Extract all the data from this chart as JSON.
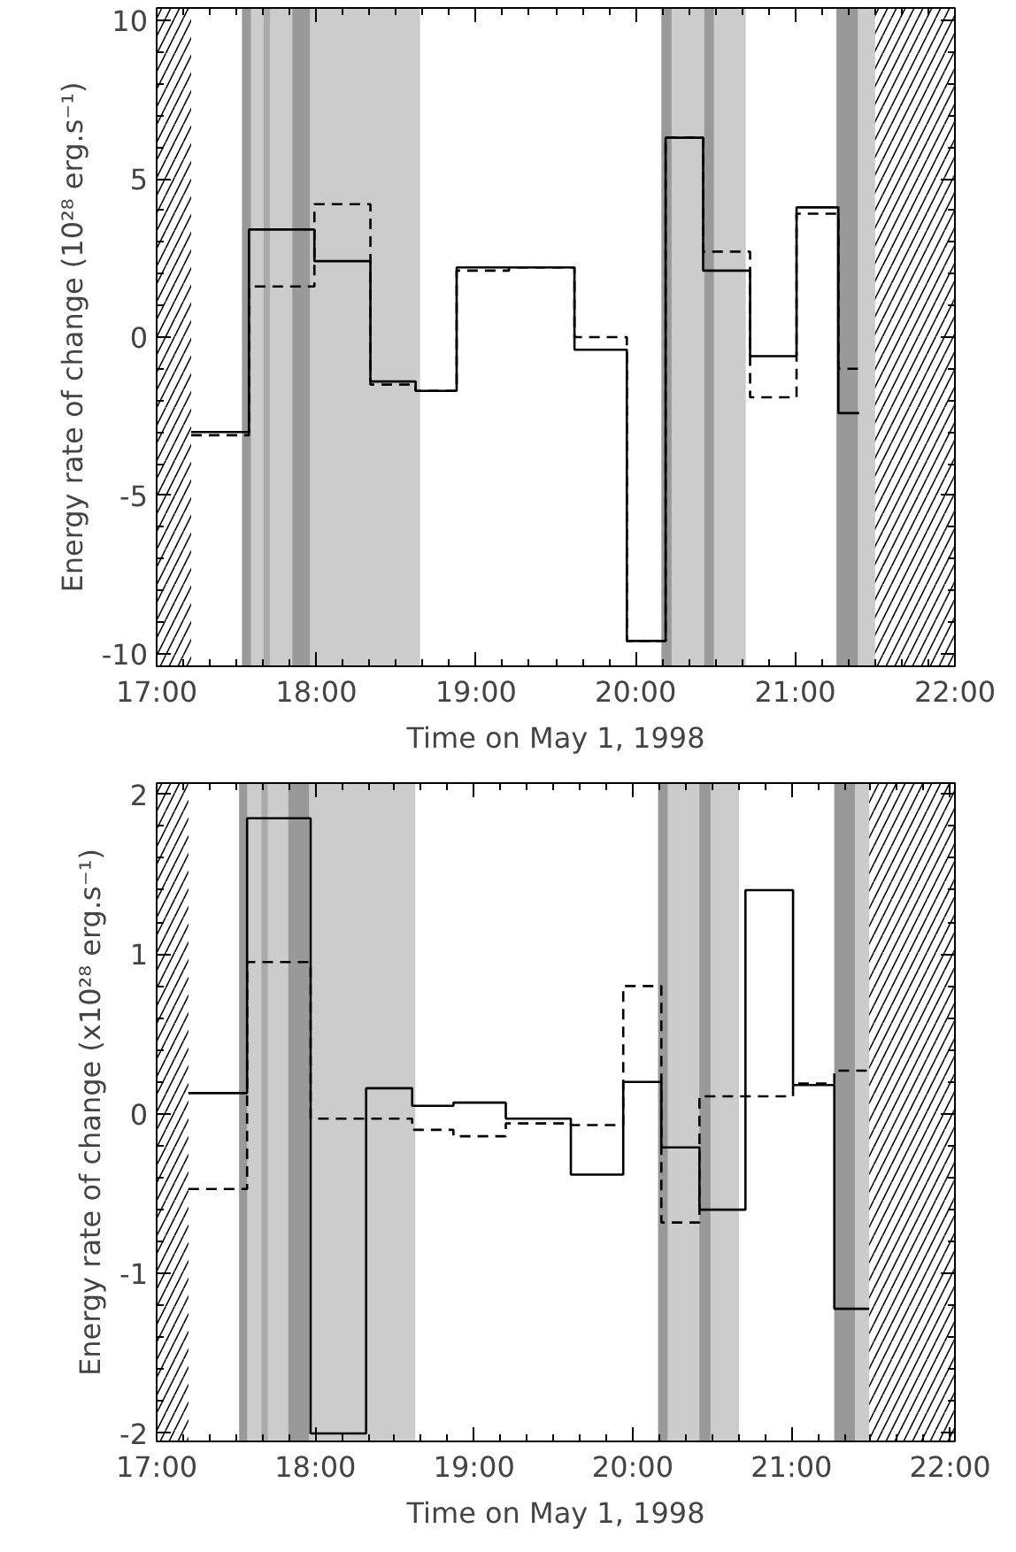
{
  "chart_data": [
    {
      "type": "step",
      "xlabel": "Time on May 1, 1998",
      "ylabel": "Energy rate of change (10²⁸ erg.s⁻¹)",
      "xlim": [
        17,
        22
      ],
      "ylim": [
        -10.4,
        10.4
      ],
      "grid": false,
      "marker": "none",
      "xticks": [
        {
          "value": 17,
          "label": "17:00"
        },
        {
          "value": 18,
          "label": "18:00"
        },
        {
          "value": 19,
          "label": "19:00"
        },
        {
          "value": 20,
          "label": "20:00"
        },
        {
          "value": 21,
          "label": "21:00"
        },
        {
          "value": 22,
          "label": "22:00"
        }
      ],
      "yticks": [
        -10,
        -5,
        0,
        5,
        10
      ],
      "bands": [
        {
          "axis": "x",
          "from": 17.0,
          "to": 17.216
        },
        {
          "axis": "x",
          "from": 21.5,
          "to": 22.0
        },
        {
          "axis": "x",
          "from": 17.535,
          "to": 18.65,
          "color": "#cccccc"
        },
        {
          "axis": "x",
          "from": 20.162,
          "to": 20.69,
          "color": "#cccccc"
        },
        {
          "axis": "x",
          "from": 21.258,
          "to": 21.5,
          "color": "#cccccc"
        },
        {
          "axis": "x",
          "from": 17.535,
          "to": 17.59,
          "color": "#999999"
        },
        {
          "axis": "x",
          "from": 17.67,
          "to": 17.71,
          "color": "#aaaaaa"
        },
        {
          "axis": "x",
          "from": 17.85,
          "to": 17.96,
          "color": "#999999"
        },
        {
          "axis": "x",
          "from": 20.162,
          "to": 20.225,
          "color": "#999999"
        },
        {
          "axis": "x",
          "from": 20.43,
          "to": 20.49,
          "color": "#999999"
        },
        {
          "axis": "x",
          "from": 21.258,
          "to": 21.392,
          "color": "#999999"
        }
      ],
      "series": [
        {
          "color": "#000000",
          "line_style": "solid",
          "x": [
            17.216,
            17.578,
            17.988,
            18.339,
            18.622,
            18.879,
            19.207,
            19.617,
            19.945,
            20.188,
            20.423,
            20.717,
            21.008,
            21.27,
            21.4
          ],
          "values": [
            -3.0,
            3.4,
            2.4,
            -1.4,
            -1.7,
            2.2,
            2.2,
            -0.4,
            -9.6,
            6.3,
            2.1,
            -0.6,
            4.1,
            -2.4,
            -2.4
          ]
        },
        {
          "color": "#000000",
          "line_style": "dashed",
          "x": [
            17.216,
            17.578,
            17.988,
            18.339,
            18.622,
            18.879,
            19.207,
            19.617,
            19.945,
            20.188,
            20.423,
            20.717,
            21.008,
            21.27,
            21.4
          ],
          "values": [
            -3.1,
            1.6,
            4.2,
            -1.5,
            -1.7,
            2.1,
            2.2,
            0.0,
            -9.6,
            6.3,
            2.7,
            -1.9,
            3.9,
            -1.0,
            -1.0
          ]
        }
      ]
    },
    {
      "type": "step",
      "xlabel": "Time on May 1, 1998",
      "ylabel": "Energy rate of change (x10²⁸ erg.s⁻¹)",
      "xlim": [
        17,
        22.03
      ],
      "ylim": [
        -2.05,
        2.07
      ],
      "grid": false,
      "marker": "none",
      "xticks": [
        {
          "value": 17,
          "label": "17:00"
        },
        {
          "value": 18,
          "label": "18:00"
        },
        {
          "value": 19,
          "label": "19:00"
        },
        {
          "value": 20,
          "label": "20:00"
        },
        {
          "value": 21,
          "label": "21:00"
        },
        {
          "value": 22,
          "label": "22:00"
        }
      ],
      "yticks": [
        -2,
        -1,
        0,
        1,
        2
      ],
      "bands": [
        {
          "axis": "x",
          "from": 17.0,
          "to": 17.2
        },
        {
          "axis": "x",
          "from": 21.49,
          "to": 22.03
        },
        {
          "axis": "x",
          "from": 17.52,
          "to": 18.63,
          "color": "#cccccc"
        },
        {
          "axis": "x",
          "from": 20.16,
          "to": 20.67,
          "color": "#cccccc"
        },
        {
          "axis": "x",
          "from": 21.27,
          "to": 21.49,
          "color": "#cccccc"
        },
        {
          "axis": "x",
          "from": 17.52,
          "to": 17.57,
          "color": "#999999"
        },
        {
          "axis": "x",
          "from": 17.66,
          "to": 17.7,
          "color": "#aaaaaa"
        },
        {
          "axis": "x",
          "from": 17.83,
          "to": 17.96,
          "color": "#999999"
        },
        {
          "axis": "x",
          "from": 20.16,
          "to": 20.22,
          "color": "#999999"
        },
        {
          "axis": "x",
          "from": 20.42,
          "to": 20.49,
          "color": "#999999"
        },
        {
          "axis": "x",
          "from": 21.27,
          "to": 21.4,
          "color": "#999999"
        }
      ],
      "series": [
        {
          "color": "#000000",
          "line_style": "solid",
          "x": [
            17.2,
            17.57,
            17.97,
            18.32,
            18.61,
            18.87,
            19.2,
            19.61,
            19.94,
            20.18,
            20.42,
            20.71,
            21.01,
            21.27,
            21.49
          ],
          "values": [
            0.13,
            1.85,
            -2.0,
            0.16,
            0.05,
            0.07,
            -0.03,
            -0.38,
            0.2,
            -0.21,
            -0.6,
            1.4,
            0.18,
            -1.22,
            -1.22
          ]
        },
        {
          "color": "#000000",
          "line_style": "dashed",
          "x": [
            17.2,
            17.57,
            17.97,
            18.32,
            18.61,
            18.87,
            19.2,
            19.61,
            19.94,
            20.18,
            20.42,
            20.71,
            21.01,
            21.27,
            21.49
          ],
          "values": [
            -0.47,
            0.95,
            -0.03,
            -0.03,
            -0.1,
            -0.14,
            -0.06,
            -0.07,
            0.8,
            -0.68,
            0.11,
            0.11,
            0.19,
            0.27,
            0.27
          ]
        }
      ]
    }
  ]
}
